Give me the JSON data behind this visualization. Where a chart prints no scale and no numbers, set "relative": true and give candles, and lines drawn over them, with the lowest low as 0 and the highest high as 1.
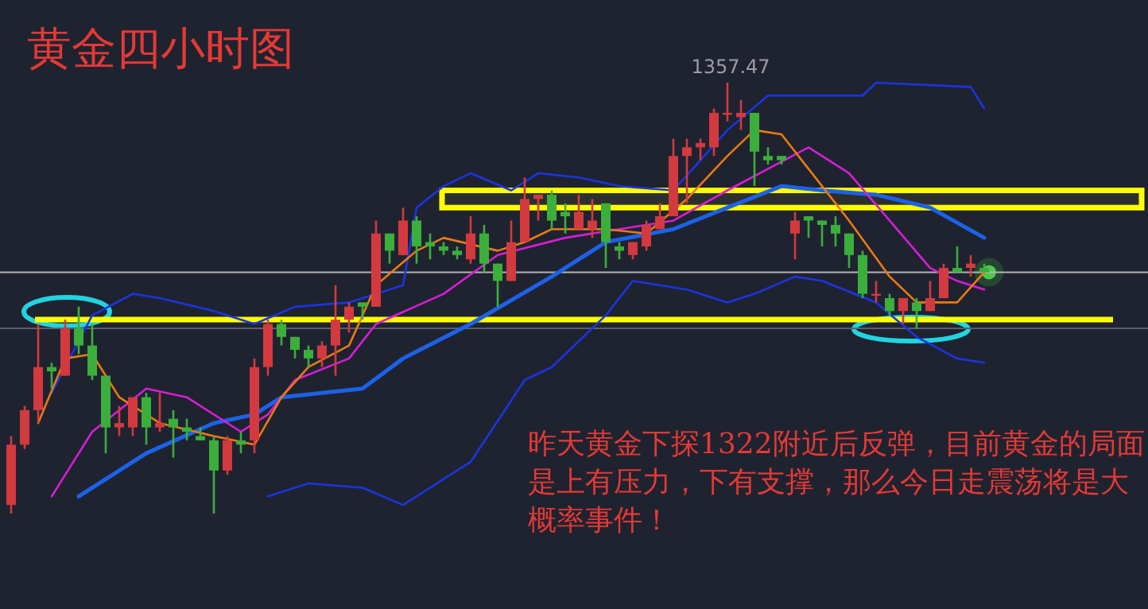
{
  "chart_data": {
    "type": "candlestick",
    "relative": true,
    "title": "黄金四小时图",
    "categories": [
      null,
      null,
      null,
      null,
      null,
      null,
      null,
      null,
      null,
      null,
      null,
      null,
      null,
      null,
      null,
      null,
      null,
      null,
      null,
      null,
      null,
      null,
      null,
      null,
      null,
      null,
      null,
      null,
      null,
      null,
      null,
      null,
      null,
      null,
      null,
      null,
      null,
      null,
      null,
      null,
      null,
      null,
      null,
      null,
      null,
      null,
      null,
      null,
      null,
      null,
      null,
      null,
      null,
      null,
      null,
      null,
      null,
      null,
      null,
      null,
      null,
      null,
      null,
      null,
      null,
      null,
      null,
      null,
      null,
      null,
      null,
      null,
      null
    ],
    "ohlc": [
      [
        0.02,
        0.18,
        0,
        0.16
      ],
      [
        0.16,
        0.25,
        0.15,
        0.24
      ],
      [
        0.24,
        0.44,
        0.21,
        0.34
      ],
      [
        0.34,
        0.35,
        0.29,
        0.33
      ],
      [
        0.32,
        0.45,
        0.32,
        0.43
      ],
      [
        0.43,
        0.48,
        0.37,
        0.39
      ],
      [
        0.39,
        0.44,
        0.31,
        0.32
      ],
      [
        0.32,
        0.32,
        0.14,
        0.2
      ],
      [
        0.2,
        0.25,
        0.18,
        0.21
      ],
      [
        0.2,
        0.27,
        0.18,
        0.27
      ],
      [
        0.27,
        0.28,
        0.16,
        0.2
      ],
      [
        0.2,
        0.28,
        0.19,
        0.21
      ],
      [
        0.22,
        0.24,
        0.13,
        0.2
      ],
      [
        0.2,
        0.22,
        0.17,
        0.19
      ],
      [
        0.18,
        0.2,
        0.17,
        0.17
      ],
      [
        0.17,
        0.18,
        0,
        0.1
      ],
      [
        0.1,
        0.18,
        0.09,
        0.17
      ],
      [
        0.17,
        0.19,
        0.14,
        0.16
      ],
      [
        0.17,
        0.36,
        0.14,
        0.34
      ],
      [
        0.34,
        0.45,
        0.32,
        0.44
      ],
      [
        0.44,
        0.45,
        0.39,
        0.41
      ],
      [
        0.41,
        0.41,
        0.36,
        0.38
      ],
      [
        0.38,
        0.39,
        0.34,
        0.36
      ],
      [
        0.36,
        0.4,
        0.34,
        0.39
      ],
      [
        0.39,
        0.53,
        0.32,
        0.45
      ],
      [
        0.45,
        0.49,
        0.42,
        0.48
      ],
      [
        0.49,
        0.49,
        0.45,
        0.48
      ],
      [
        0.48,
        0.68,
        0.48,
        0.65
      ],
      [
        0.65,
        0.65,
        0.58,
        0.61
      ],
      [
        0.6,
        0.71,
        0.6,
        0.68
      ],
      [
        0.68,
        0.69,
        0.58,
        0.62
      ],
      [
        0.63,
        0.65,
        0.59,
        0.62
      ],
      [
        0.62,
        0.63,
        0.6,
        0.61
      ],
      [
        0.61,
        0.62,
        0.59,
        0.6
      ],
      [
        0.59,
        0.69,
        0.58,
        0.65
      ],
      [
        0.65,
        0.67,
        0.56,
        0.58
      ],
      [
        0.58,
        0.58,
        0.48,
        0.54
      ],
      [
        0.54,
        0.68,
        0.54,
        0.63
      ],
      [
        0.63,
        0.78,
        0.63,
        0.73
      ],
      [
        0.73,
        0.74,
        0.68,
        0.74
      ],
      [
        0.74,
        0.75,
        0.66,
        0.68
      ],
      [
        0.7,
        0.72,
        0.65,
        0.69
      ],
      [
        0.66,
        0.74,
        0.66,
        0.7
      ],
      [
        0.66,
        0.73,
        0.64,
        0.68
      ],
      [
        0.72,
        0.72,
        0.57,
        0.63
      ],
      [
        0.62,
        0.63,
        0.59,
        0.61
      ],
      [
        0.6,
        0.63,
        0.59,
        0.63
      ],
      [
        0.62,
        0.68,
        0.61,
        0.67
      ],
      [
        0.66,
        0.72,
        0.66,
        0.69
      ],
      [
        0.69,
        0.87,
        0.69,
        0.83
      ],
      [
        0.83,
        0.87,
        0.72,
        0.85
      ],
      [
        0.85,
        0.87,
        0.82,
        0.86
      ],
      [
        0.85,
        0.94,
        0.83,
        0.93
      ],
      [
        0.93,
        1,
        0.91,
        0.93
      ],
      [
        0.92,
        0.96,
        0.89,
        0.93
      ],
      [
        0.93,
        0.93,
        0.76,
        0.84
      ],
      [
        0.83,
        0.85,
        0.81,
        0.82
      ],
      [
        0.83,
        0.83,
        0.81,
        0.82
      ],
      [
        0.65,
        0.7,
        0.59,
        0.68
      ],
      [
        0.69,
        0.69,
        0.64,
        0.68
      ],
      [
        0.68,
        0.68,
        0.62,
        0.67
      ],
      [
        0.67,
        0.69,
        0.62,
        0.65
      ],
      [
        0.65,
        0.65,
        0.57,
        0.6
      ],
      [
        0.6,
        0.61,
        0.5,
        0.51
      ],
      [
        0.51,
        0.54,
        0.49,
        0.51
      ],
      [
        0.5,
        0.51,
        0.46,
        0.47
      ],
      [
        0.47,
        0.5,
        0.44,
        0.5
      ],
      [
        0.49,
        0.5,
        0.43,
        0.47
      ],
      [
        0.47,
        0.54,
        0.47,
        0.5
      ],
      [
        0.5,
        0.58,
        0.5,
        0.57
      ],
      [
        0.57,
        0.62,
        0.56,
        0.56
      ],
      [
        0.57,
        0.6,
        0.55,
        0.58
      ],
      [
        0.57,
        0.58,
        0.56,
        0.56
      ]
    ],
    "series": [
      {
        "type": "line",
        "color": "#1a35e0",
        "values": [
          null,
          null,
          null,
          0.28,
          null,
          null,
          0.46,
          null,
          null,
          0.51,
          null,
          0.5,
          null,
          null,
          null,
          0.47,
          null,
          null,
          0.44,
          null,
          null,
          0.48,
          null,
          null,
          null,
          0.49,
          null,
          null,
          null,
          0.53,
          0.71,
          null,
          0.76,
          null,
          0.79,
          null,
          null,
          0.75,
          null,
          0.79,
          null,
          null,
          0.78,
          null,
          null,
          0.76,
          null,
          null,
          null,
          0.75,
          null,
          null,
          null,
          0.89,
          null,
          null,
          0.97,
          null,
          null,
          null,
          null,
          null,
          null,
          0.97,
          1,
          null,
          null,
          null,
          null,
          null,
          null,
          0.99,
          0.94
        ]
      },
      {
        "type": "line",
        "color": "#1a35e0",
        "values": [
          null,
          null,
          null,
          null,
          null,
          null,
          null,
          null,
          null,
          null,
          null,
          null,
          null,
          null,
          null,
          null,
          null,
          null,
          null,
          0.04,
          null,
          null,
          0.07,
          null,
          null,
          null,
          0.06,
          null,
          null,
          0.02,
          null,
          null,
          null,
          null,
          0.12,
          null,
          null,
          null,
          0.31,
          null,
          0.34,
          null,
          null,
          null,
          0.46,
          null,
          0.54,
          null,
          null,
          null,
          0.52,
          null,
          null,
          0.49,
          null,
          0.51,
          null,
          null,
          0.55,
          null,
          0.54,
          null,
          null,
          null,
          0.49,
          null,
          null,
          0.41,
          null,
          null,
          0.36,
          null,
          0.35
        ]
      },
      {
        "type": "line",
        "color": "#1c62e8",
        "values": [
          null,
          null,
          null,
          null,
          null,
          0.04,
          null,
          null,
          null,
          null,
          0.14,
          null,
          null,
          null,
          null,
          0.21,
          null,
          null,
          0.23,
          null,
          0.27,
          null,
          null,
          null,
          null,
          null,
          0.29,
          null,
          null,
          0.36,
          null,
          null,
          null,
          null,
          0.44,
          null,
          null,
          null,
          null,
          null,
          0.55,
          null,
          null,
          null,
          0.63,
          null,
          null,
          null,
          null,
          0.66,
          null,
          null,
          null,
          0.71,
          null,
          null,
          null,
          0.76,
          null,
          null,
          0.75,
          null,
          null,
          null,
          0.74,
          null,
          null,
          null,
          0.71,
          null,
          null,
          null,
          0.64
        ]
      },
      {
        "type": "line",
        "color": "#d61ed6",
        "values": [
          null,
          null,
          null,
          0.04,
          null,
          null,
          0.19,
          null,
          null,
          null,
          0.29,
          null,
          null,
          0.27,
          null,
          null,
          null,
          0.19,
          null,
          0.23,
          null,
          0.31,
          null,
          null,
          null,
          0.36,
          null,
          0.44,
          null,
          null,
          null,
          null,
          0.51,
          null,
          null,
          null,
          0.6,
          null,
          null,
          null,
          null,
          0.64,
          null,
          null,
          null,
          0.66,
          null,
          null,
          null,
          0.68,
          null,
          null,
          null,
          0.75,
          null,
          null,
          0.8,
          null,
          null,
          0.85,
          null,
          null,
          0.79,
          null,
          null,
          0.68,
          null,
          null,
          0.57,
          null,
          0.54,
          null,
          0.52
        ]
      },
      {
        "type": "line",
        "color": "#ea7a12",
        "values": [
          null,
          null,
          0.21,
          null,
          0.36,
          null,
          0.37,
          null,
          0.27,
          null,
          null,
          0.21,
          null,
          null,
          null,
          0.18,
          null,
          null,
          0.16,
          null,
          0.27,
          null,
          0.34,
          null,
          null,
          0.39,
          null,
          0.53,
          null,
          null,
          0.61,
          null,
          0.64,
          null,
          null,
          null,
          0.61,
          null,
          0.63,
          null,
          0.66,
          null,
          null,
          null,
          0.66,
          null,
          null,
          0.65,
          null,
          null,
          0.73,
          null,
          null,
          0.83,
          null,
          0.89,
          null,
          0.88,
          null,
          0.8,
          null,
          null,
          0.68,
          null,
          null,
          0.55,
          null,
          0.49,
          null,
          null,
          0.49,
          null,
          0.56
        ]
      }
    ],
    "ref_lines": [
      {
        "axis": "y",
        "value": 0.45,
        "color": "#ffff00"
      },
      {
        "axis": "y",
        "value": 0.56,
        "color": "#b4b4b4"
      },
      {
        "axis": "y",
        "value": 0.43,
        "color": "#5a5f6c"
      }
    ],
    "bands": [
      {
        "axis": "y",
        "from": 0.71,
        "to": 0.75,
        "color": "#ffff00"
      }
    ],
    "annotations": [
      "1357.47",
      "昨天黄金下探1322附近后反弹，目前黄金的局面是上有压力，下有支撑，那么今日走震荡将是大概率事件！"
    ]
  }
}
